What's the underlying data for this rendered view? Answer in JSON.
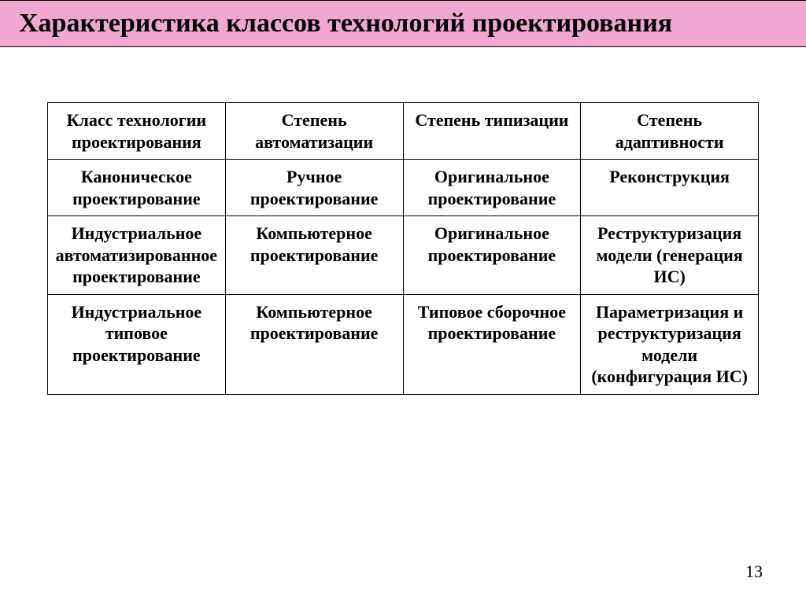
{
  "title": "Характеристика классов технологий проектирования",
  "table": {
    "type": "table",
    "columns": 4,
    "column_widths": [
      "25%",
      "25%",
      "25%",
      "25%"
    ],
    "border_color": "#000000",
    "background_color": "#ffffff",
    "font_family": "Times New Roman",
    "font_weight": "bold",
    "cell_fontsize": 22,
    "header": [
      "Класс технологии проектирования",
      "Степень автоматизации",
      "Степень типизации",
      "Степень адаптивности"
    ],
    "rows": [
      [
        "Каноническое проектирование",
        "Ручное проектирование",
        "Оригинальное проектирование",
        "Реконструкция"
      ],
      [
        "Индустриальное автоматизированное проектирование",
        "Компьютерное проектирование",
        "Оригинальное проектирование",
        "Реструктуризация модели (генерация ИС)"
      ],
      [
        "Индустриальное типовое проектирование",
        "Компьютерное проектирование",
        "Типовое сборочное проектирование",
        "Параметризация и реструктуризация модели (конфигурация ИС)"
      ]
    ]
  },
  "page_number": "13",
  "title_bar_color": "#f0a8d0",
  "title_fontsize": 34
}
